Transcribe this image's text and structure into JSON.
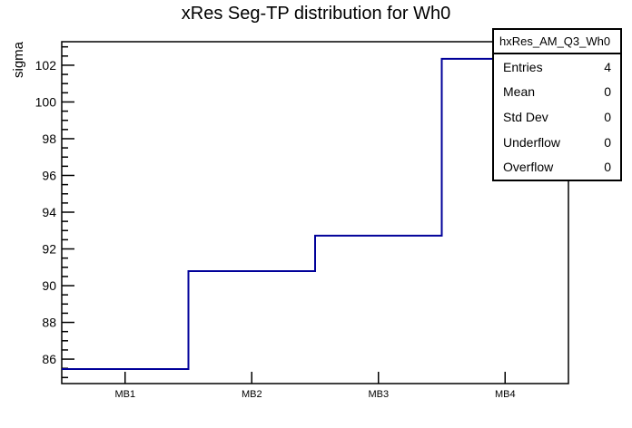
{
  "chart_data": {
    "type": "line",
    "style": "root-step-histogram",
    "title": "xRes Seg-TP distribution for Wh0",
    "ylabel": "sigma",
    "xlabel": "",
    "categories": [
      "MB1",
      "MB2",
      "MB3",
      "MB4"
    ],
    "values": [
      85.46,
      90.79,
      92.72,
      102.35
    ],
    "ylim": [
      84.67,
      103.28
    ],
    "y_major_ticks": [
      86,
      88,
      90,
      92,
      94,
      96,
      98,
      100,
      102
    ],
    "y_minor_tick_step": 0.5,
    "grid": false,
    "legend_position": "none",
    "line_color": "#000099",
    "axis_color": "#000000"
  },
  "stats_box": {
    "title": "hxRes_AM_Q3_Wh0",
    "rows": [
      {
        "label": "Entries",
        "value": "4"
      },
      {
        "label": "Mean",
        "value": "0"
      },
      {
        "label": "Std Dev",
        "value": "0"
      },
      {
        "label": "Underflow",
        "value": "0"
      },
      {
        "label": "Overflow",
        "value": "0"
      }
    ]
  }
}
